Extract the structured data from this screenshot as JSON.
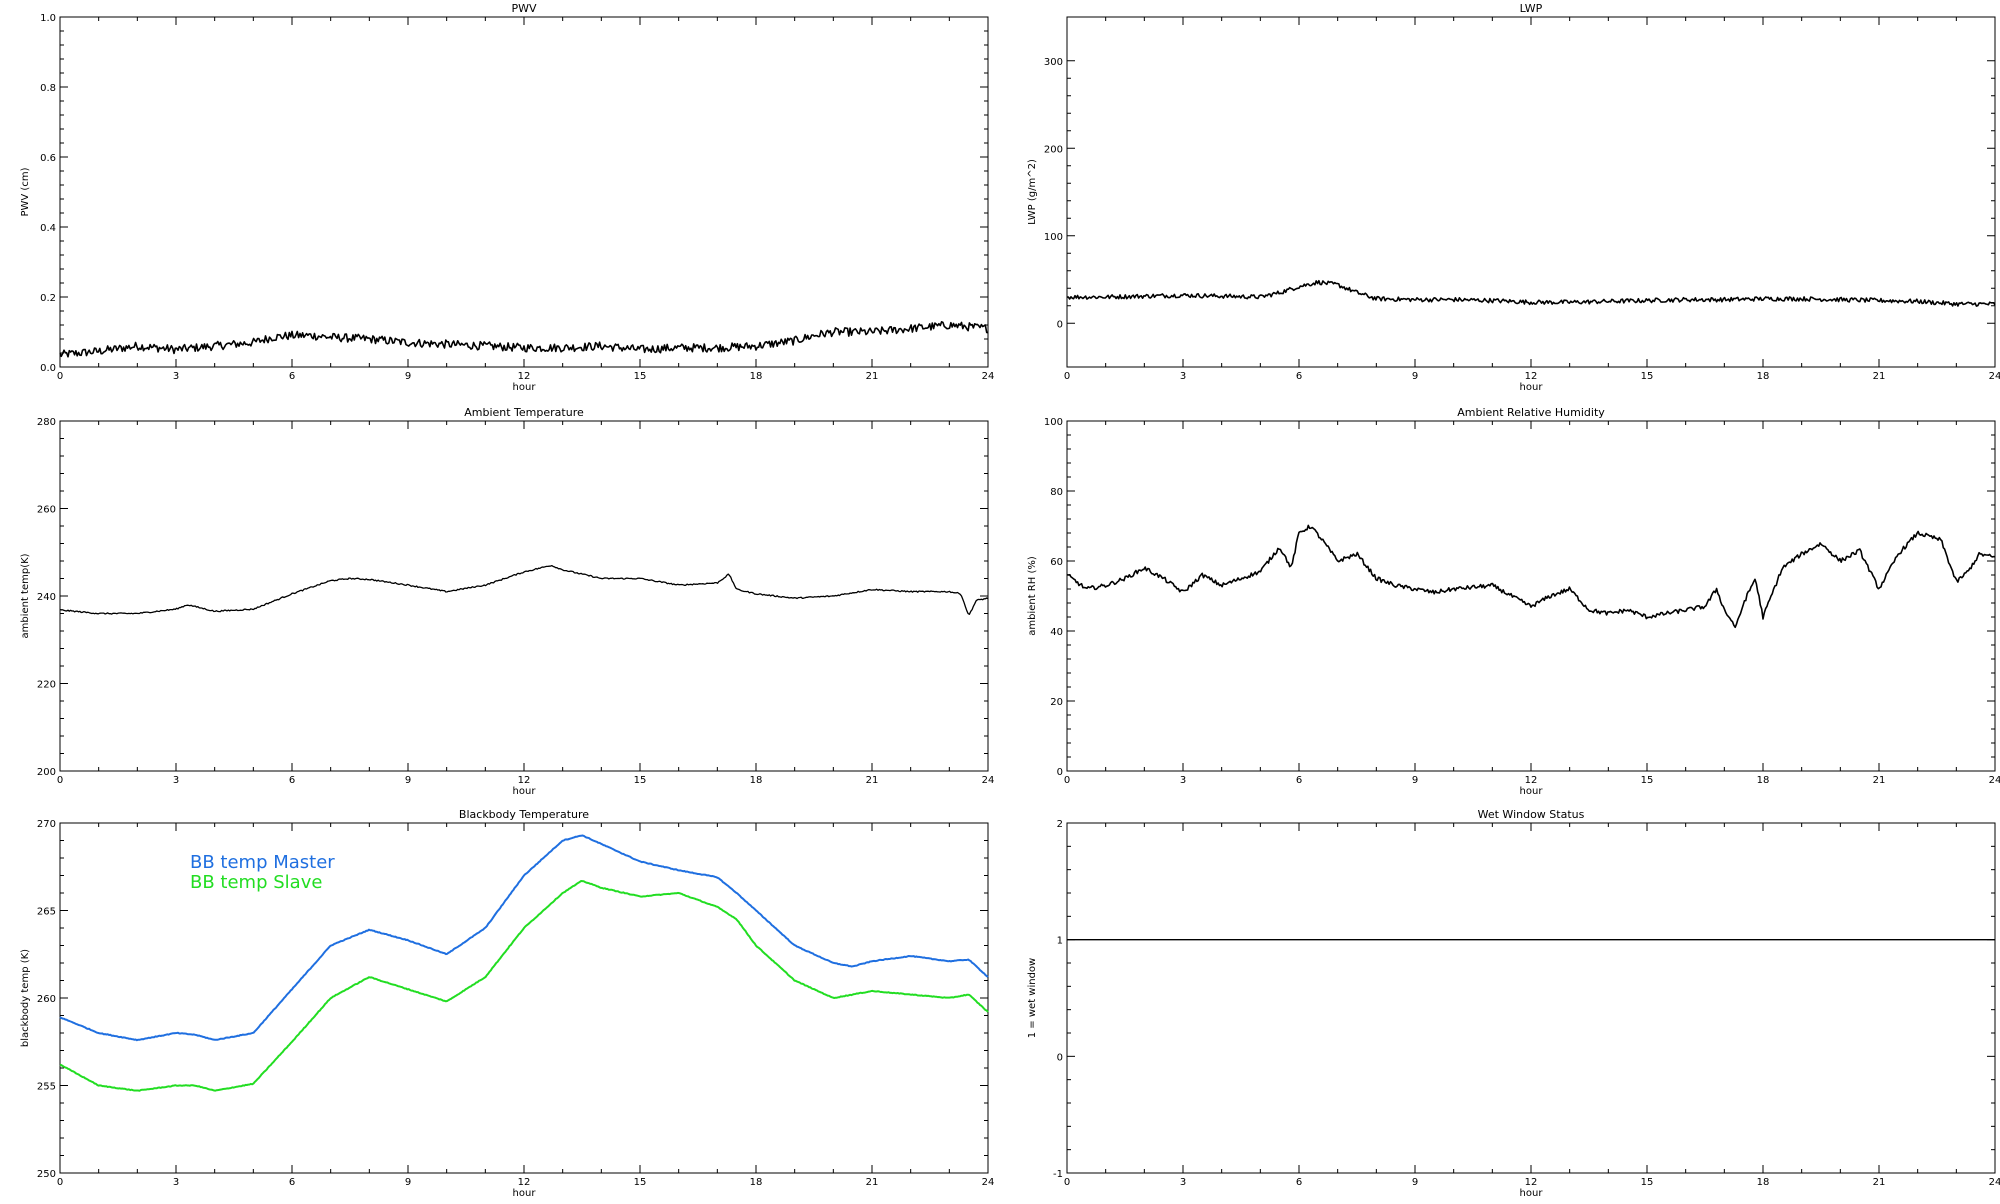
{
  "chart_data": [
    {
      "id": "pwv",
      "type": "line",
      "title": "PWV",
      "xlabel": "hour",
      "ylabel": "PWV (cm)",
      "xlim": [
        0,
        24
      ],
      "ylim": [
        0.0,
        1.0
      ],
      "xticks": [
        "0",
        "3",
        "6",
        "9",
        "12",
        "15",
        "18",
        "21",
        "24"
      ],
      "yticks": [
        "0.0",
        "0.2",
        "0.4",
        "0.6",
        "0.8",
        "1.0"
      ],
      "series": [
        {
          "color": "#000000",
          "noise": 0.012,
          "x": [
            0,
            1,
            2,
            3,
            4,
            5,
            5.5,
            6,
            6.5,
            7,
            8,
            9,
            10,
            11,
            12,
            13,
            14,
            15,
            16,
            17,
            18,
            19,
            19.5,
            20,
            21,
            22,
            23,
            24
          ],
          "y": [
            0.035,
            0.045,
            0.06,
            0.05,
            0.06,
            0.07,
            0.085,
            0.09,
            0.09,
            0.085,
            0.08,
            0.07,
            0.065,
            0.06,
            0.055,
            0.055,
            0.06,
            0.05,
            0.055,
            0.055,
            0.06,
            0.075,
            0.09,
            0.1,
            0.1,
            0.11,
            0.12,
            0.11
          ]
        }
      ]
    },
    {
      "id": "lwp",
      "type": "line",
      "title": "LWP",
      "xlabel": "hour",
      "ylabel": "LWP (g/m^2)",
      "xlim": [
        0,
        24
      ],
      "ylim": [
        -50,
        350
      ],
      "xticks": [
        "0",
        "3",
        "6",
        "9",
        "12",
        "15",
        "18",
        "21",
        "24"
      ],
      "yticks": [
        "0",
        "100",
        "200",
        "300"
      ],
      "series": [
        {
          "color": "#000000",
          "noise": 2.5,
          "x": [
            0,
            1,
            2,
            3,
            4,
            5,
            5.5,
            6,
            6.5,
            7,
            7.5,
            8,
            9,
            10,
            11,
            12,
            13,
            14,
            15,
            16,
            17,
            18,
            19,
            20,
            21,
            22,
            23,
            24
          ],
          "y": [
            30,
            30,
            31,
            32,
            31,
            30,
            35,
            42,
            47,
            44,
            35,
            28,
            27,
            27,
            26,
            24,
            24,
            25,
            26,
            27,
            27,
            28,
            28,
            27,
            26,
            25,
            22,
            22
          ]
        }
      ]
    },
    {
      "id": "ambient-temp",
      "type": "line",
      "title": "Ambient Temperature",
      "xlabel": "hour",
      "ylabel": "ambient temp(K)",
      "xlim": [
        0,
        24
      ],
      "ylim": [
        200,
        280
      ],
      "xticks": [
        "0",
        "3",
        "6",
        "9",
        "12",
        "15",
        "18",
        "21",
        "24"
      ],
      "yticks": [
        "200",
        "220",
        "240",
        "260",
        "280"
      ],
      "series": [
        {
          "color": "#000000",
          "noise": 0.15,
          "x": [
            0,
            1,
            2,
            3,
            3.3,
            4,
            5,
            6,
            7,
            7.5,
            8,
            9,
            10,
            11,
            12,
            12.7,
            13,
            14,
            15,
            16,
            17,
            17.3,
            17.5,
            18,
            19,
            20,
            21,
            22,
            23,
            23.3,
            23.5,
            23.7,
            24
          ],
          "y": [
            236.8,
            236.0,
            236.0,
            237.0,
            238.0,
            236.5,
            237.0,
            240.5,
            243.5,
            244.0,
            243.8,
            242.5,
            241.0,
            242.5,
            245.5,
            247.0,
            246.0,
            244.0,
            244.0,
            242.5,
            243.0,
            245.0,
            241.5,
            240.5,
            239.5,
            240.0,
            241.5,
            241.0,
            241.0,
            240.5,
            235.5,
            239.0,
            239.5
          ]
        }
      ]
    },
    {
      "id": "ambient-rh",
      "type": "line",
      "title": "Ambient Relative Humidity",
      "xlabel": "hour",
      "ylabel": "ambient RH (%)",
      "xlim": [
        0,
        24
      ],
      "ylim": [
        0,
        100
      ],
      "xticks": [
        "0",
        "3",
        "6",
        "9",
        "12",
        "15",
        "18",
        "21",
        "24"
      ],
      "yticks": [
        "0",
        "20",
        "40",
        "60",
        "80",
        "100"
      ],
      "series": [
        {
          "color": "#000000",
          "noise": 0.6,
          "x": [
            0,
            0.5,
            1,
            1.5,
            2,
            2.5,
            3,
            3.5,
            4,
            4.5,
            5,
            5.5,
            5.8,
            6,
            6.3,
            6.6,
            7,
            7.5,
            8,
            8.5,
            9,
            9.5,
            10,
            11,
            12,
            12.5,
            13,
            13.5,
            14,
            14.5,
            15,
            15.5,
            16,
            16.5,
            16.8,
            17,
            17.3,
            17.5,
            17.8,
            18,
            18.5,
            19,
            19.5,
            20,
            20.5,
            21,
            21.5,
            22,
            22.3,
            22.6,
            23,
            23.3,
            23.6,
            24
          ],
          "y": [
            56,
            52,
            53,
            55,
            58,
            55,
            51,
            56,
            53,
            55,
            57,
            64,
            58,
            68,
            70,
            66,
            60,
            62,
            55,
            53,
            52,
            51,
            52,
            53,
            47,
            50,
            52,
            46,
            45,
            46,
            44,
            45,
            46,
            47,
            52,
            46,
            41,
            48,
            55,
            44,
            58,
            62,
            65,
            60,
            63,
            52,
            62,
            68,
            67,
            66,
            54,
            57,
            62,
            61
          ]
        }
      ]
    },
    {
      "id": "blackbody-temp",
      "type": "line",
      "title": "Blackbody Temperature",
      "xlabel": "hour",
      "ylabel": "blackbody temp (K)",
      "xlim": [
        0,
        24
      ],
      "ylim": [
        250,
        270
      ],
      "xticks": [
        "0",
        "3",
        "6",
        "9",
        "12",
        "15",
        "18",
        "21",
        "24"
      ],
      "yticks": [
        "250",
        "255",
        "260",
        "265",
        "270"
      ],
      "legend": [
        {
          "label": "BB temp Master",
          "color": "#1f6fe0"
        },
        {
          "label": "BB temp Slave",
          "color": "#22dd22"
        }
      ],
      "series": [
        {
          "name": "BB temp Master",
          "color": "#1f6fe0",
          "noise": 0.02,
          "x": [
            0,
            1,
            2,
            3,
            3.5,
            4,
            5,
            6,
            7,
            8,
            9,
            10,
            11,
            12,
            13,
            13.5,
            14,
            15,
            16,
            17,
            17.5,
            18,
            19,
            20,
            20.5,
            21,
            22,
            23,
            23.5,
            24
          ],
          "y": [
            258.9,
            258.0,
            257.6,
            258.0,
            257.9,
            257.6,
            258.0,
            260.5,
            263.0,
            263.9,
            263.3,
            262.5,
            264.0,
            267.0,
            269.0,
            269.3,
            268.8,
            267.8,
            267.3,
            266.9,
            266.0,
            265.0,
            263.0,
            262.0,
            261.8,
            262.1,
            262.4,
            262.1,
            262.2,
            261.2
          ]
        },
        {
          "name": "BB temp Slave",
          "color": "#22dd22",
          "noise": 0.02,
          "x": [
            0,
            1,
            2,
            3,
            3.5,
            4,
            5,
            6,
            7,
            8,
            9,
            10,
            11,
            12,
            13,
            13.5,
            14,
            15,
            16,
            17,
            17.5,
            18,
            19,
            20,
            20.5,
            21,
            22,
            23,
            23.5,
            24
          ],
          "y": [
            256.2,
            255.0,
            254.7,
            255.0,
            255.0,
            254.7,
            255.1,
            257.5,
            260.0,
            261.2,
            260.5,
            259.8,
            261.2,
            264.0,
            266.0,
            266.7,
            266.3,
            265.8,
            266.0,
            265.2,
            264.5,
            263.0,
            261.0,
            260.0,
            260.2,
            260.4,
            260.2,
            260.0,
            260.2,
            259.2
          ]
        }
      ]
    },
    {
      "id": "wet-window",
      "type": "line",
      "title": "Wet Window Status",
      "xlabel": "hour",
      "ylabel": "1 = wet window",
      "xlim": [
        0,
        24
      ],
      "ylim": [
        -1,
        2
      ],
      "xticks": [
        "0",
        "3",
        "6",
        "9",
        "12",
        "15",
        "18",
        "21",
        "24"
      ],
      "yticks": [
        "-1",
        "0",
        "1",
        "2"
      ],
      "series": [
        {
          "color": "#000000",
          "noise": 0,
          "x": [
            0,
            24
          ],
          "y": [
            1,
            1
          ]
        }
      ]
    }
  ]
}
